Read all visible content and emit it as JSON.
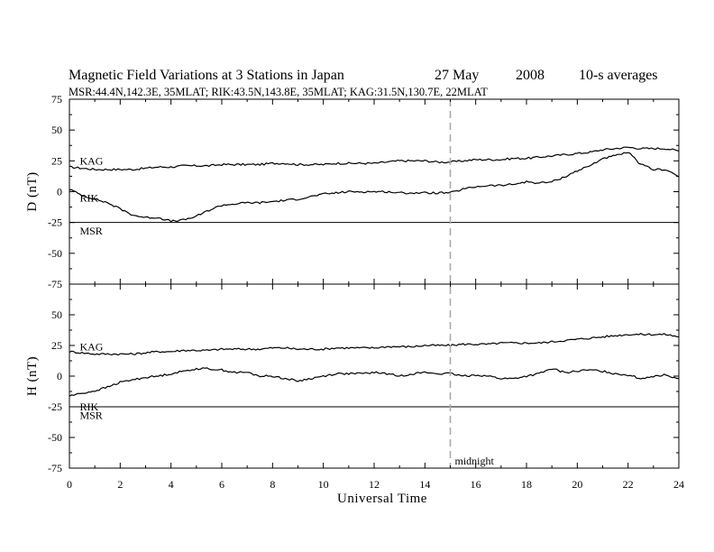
{
  "chart_data": {
    "type": "line",
    "title": {
      "main": "Magnetic Field Variations at 3 Stations in Japan",
      "date": "27 May",
      "year": "2008",
      "averaging": "10-s averages"
    },
    "subtitle": "MSR:44.4N,142.3E, 35MLAT;  RIK:43.5N,143.8E, 35MLAT;  KAG:31.5N,130.7E, 22MLAT",
    "xlabel": "Universal Time",
    "xlim": [
      0,
      24
    ],
    "xticks": [
      "0",
      "2",
      "4",
      "6",
      "8",
      "10",
      "12",
      "14",
      "16",
      "18",
      "20",
      "22",
      "24"
    ],
    "annotation": {
      "x": 15,
      "label": "midnight",
      "style": "dashed",
      "color": "#aaaaaa"
    },
    "panels": [
      {
        "id": "D",
        "ylabel": "D (nT)",
        "ylim": [
          -75,
          75
        ],
        "yticks": [
          "75",
          "50",
          "25",
          "0",
          "-25",
          "-50",
          "-75"
        ],
        "series": [
          {
            "name": "KAG",
            "label_position": [
              0.3,
              25
            ],
            "x": [
              0,
              0.5,
              1,
              1.5,
              2,
              2.5,
              3,
              3.5,
              4,
              4.5,
              5,
              5.5,
              6,
              6.5,
              7,
              7.5,
              8,
              8.5,
              9,
              9.5,
              10,
              10.5,
              11,
              11.5,
              12,
              12.5,
              13,
              13.5,
              14,
              14.5,
              15,
              15.5,
              16,
              16.5,
              17,
              17.5,
              18,
              18.5,
              19,
              19.5,
              20,
              20.5,
              21,
              21.5,
              22,
              22.5,
              23,
              23.5,
              24
            ],
            "values": [
              20,
              19,
              18,
              18,
              18,
              18,
              19,
              20,
              20,
              21,
              21,
              21,
              22,
              22,
              22,
              22,
              23,
              23,
              22,
              22,
              22,
              23,
              23,
              23,
              23,
              24,
              25,
              25,
              25,
              24,
              24,
              25,
              26,
              26,
              26,
              27,
              27,
              28,
              29,
              30,
              31,
              32,
              34,
              35,
              36,
              35,
              35,
              35,
              33
            ]
          },
          {
            "name": "RIK",
            "label_position": [
              0.3,
              -5
            ],
            "x": [
              0,
              0.5,
              1,
              1.5,
              2,
              2.5,
              3,
              3.5,
              4,
              4.5,
              5,
              5.5,
              6,
              6.5,
              7,
              7.5,
              8,
              8.5,
              9,
              9.5,
              10,
              10.5,
              11,
              11.5,
              12,
              12.5,
              13,
              13.5,
              14,
              14.5,
              15,
              15.5,
              16,
              16.5,
              17,
              17.5,
              18,
              18.5,
              19,
              19.5,
              20,
              20.5,
              21,
              21.5,
              22,
              22.5,
              23,
              23.5,
              24
            ],
            "values": [
              2,
              -3,
              -6,
              -9,
              -14,
              -19,
              -21,
              -21,
              -24,
              -23,
              -20,
              -15,
              -11,
              -10,
              -9,
              -9,
              -8,
              -7,
              -6,
              -4,
              -2,
              -1,
              0,
              0,
              0,
              0,
              -1,
              -1,
              -1,
              -1,
              -1,
              2,
              4,
              5,
              5,
              6,
              8,
              7,
              8,
              12,
              17,
              21,
              27,
              29,
              32,
              22,
              18,
              18,
              12
            ]
          },
          {
            "name": "MSR",
            "label_position": [
              0.3,
              -32
            ],
            "x": [
              0,
              24
            ],
            "values": [
              -25,
              -25
            ]
          }
        ]
      },
      {
        "id": "H",
        "ylabel": "H (nT)",
        "ylim": [
          -75,
          75
        ],
        "yticks": [
          "75",
          "50",
          "25",
          "0",
          "-25",
          "-50",
          "-75"
        ],
        "series": [
          {
            "name": "KAG",
            "label_position": [
              0.3,
              24
            ],
            "x": [
              0,
              0.5,
              1,
              1.5,
              2,
              2.5,
              3,
              3.5,
              4,
              4.5,
              5,
              5.5,
              6,
              6.5,
              7,
              7.5,
              8,
              8.5,
              9,
              9.5,
              10,
              10.5,
              11,
              11.5,
              12,
              12.5,
              13,
              13.5,
              14,
              14.5,
              15,
              15.5,
              16,
              16.5,
              17,
              17.5,
              18,
              18.5,
              19,
              19.5,
              20,
              20.5,
              21,
              21.5,
              22,
              22.5,
              23,
              23.5,
              24
            ],
            "values": [
              20,
              19,
              18,
              18,
              18,
              18,
              19,
              20,
              20,
              21,
              21,
              21,
              22,
              22,
              22,
              22,
              23,
              23,
              22,
              22,
              22,
              23,
              23,
              23,
              23,
              24,
              24,
              24,
              25,
              25,
              25,
              26,
              26,
              26,
              27,
              27,
              27,
              27,
              28,
              29,
              30,
              31,
              32,
              33,
              34,
              34,
              34,
              34,
              32
            ]
          },
          {
            "name": "RIK",
            "label_position": [
              0.3,
              -25
            ],
            "x": [
              0,
              0.5,
              1,
              1.5,
              2,
              2.5,
              3,
              3.5,
              4,
              4.5,
              5,
              5.5,
              6,
              6.5,
              7,
              7.5,
              8,
              8.5,
              9,
              9.5,
              10,
              10.5,
              11,
              11.5,
              12,
              12.5,
              13,
              13.5,
              14,
              14.5,
              15,
              15.5,
              16,
              16.5,
              17,
              17.5,
              18,
              18.5,
              19,
              19.5,
              20,
              20.5,
              21,
              21.5,
              22,
              22.5,
              23,
              23.5,
              24
            ],
            "values": [
              -16,
              -14,
              -12,
              -9,
              -5,
              -3,
              -1,
              0,
              2,
              4,
              6,
              6,
              5,
              3,
              3,
              0,
              0,
              -2,
              -4,
              -2,
              0,
              2,
              2,
              2,
              3,
              2,
              0,
              2,
              3,
              2,
              2,
              0,
              1,
              0,
              -2,
              -2,
              0,
              2,
              6,
              3,
              4,
              5,
              4,
              2,
              1,
              -2,
              0,
              1,
              -2
            ]
          },
          {
            "name": "MSR",
            "label_position": [
              0.3,
              -32
            ],
            "x": [
              0,
              24
            ],
            "values": [
              -25,
              -25
            ]
          }
        ]
      }
    ]
  }
}
